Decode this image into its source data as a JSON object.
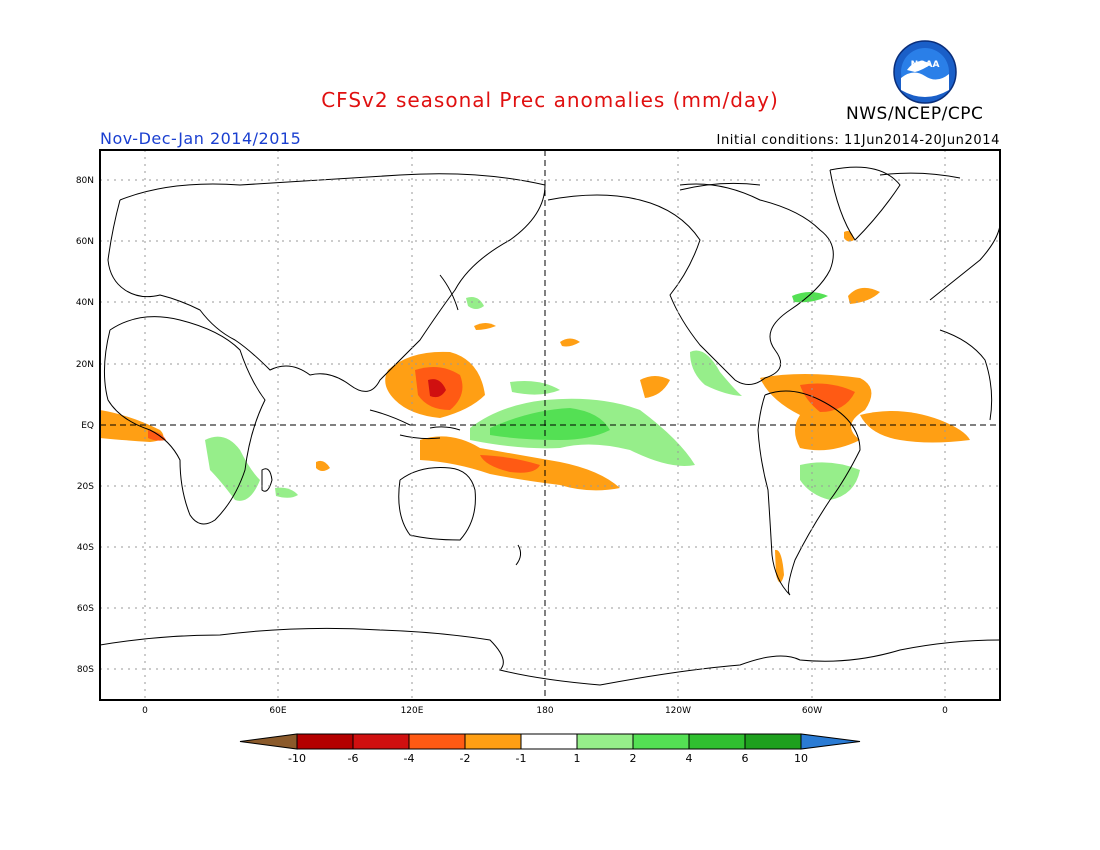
{
  "header": {
    "title": "CFSv2 seasonal Prec anomalies (mm/day)",
    "agency": "NWS/NCEP/CPC",
    "period": "Nov-Dec-Jan 2014/2015",
    "initial_conditions": "Initial conditions: 11Jun2014-20Jun2014",
    "logo_text": "NOAA"
  },
  "axes": {
    "lat_labels": [
      "80N",
      "60N",
      "40N",
      "20N",
      "EQ",
      "20S",
      "40S",
      "60S",
      "80S"
    ],
    "lon_labels": [
      "0",
      "60E",
      "120E",
      "180",
      "120W",
      "60W",
      "0"
    ]
  },
  "colorbar": {
    "tick_labels": [
      "-10",
      "-6",
      "-4",
      "-2",
      "-1",
      "1",
      "2",
      "4",
      "6",
      "10"
    ],
    "colors": [
      "#8b5a2b",
      "#b40000",
      "#d01010",
      "#ff5a14",
      "#ff9f14",
      "#ffffff",
      "#96ee8a",
      "#54e054",
      "#30c030",
      "#1ea01e",
      "#2a7bd4"
    ]
  },
  "colors": {
    "title": "#e01010",
    "period": "#1a3fd0",
    "land_outline": "#000000",
    "grid": "#9a9a9a"
  }
}
